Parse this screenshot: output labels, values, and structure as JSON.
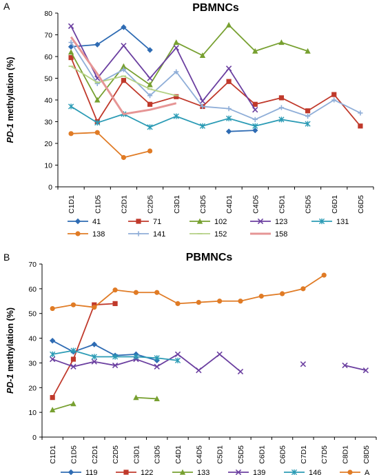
{
  "chart_data": [
    {
      "type": "line",
      "panel_label": "A",
      "title": "PBMNCs",
      "ylabel_prefix": "PD-1",
      "ylabel_suffix": " methylation (%)",
      "ylim": [
        0,
        80
      ],
      "yticks": [
        0,
        10,
        20,
        30,
        40,
        50,
        60,
        70,
        80
      ],
      "grid": false,
      "legend_position": "bottom",
      "categories": [
        "C1D1",
        "C1D5",
        "C2D1",
        "C2D5",
        "C3D1",
        "C3D5",
        "C4D1",
        "C4D5",
        "C5D1",
        "C5D5",
        "C6D1",
        "C6D5"
      ],
      "series": [
        {
          "name": "41",
          "color": "#2e6bb3",
          "marker": "diamond",
          "values": [
            64.5,
            65.5,
            73.5,
            63,
            null,
            null,
            25.5,
            26,
            null,
            null,
            null,
            null
          ]
        },
        {
          "name": "71",
          "color": "#c0392b",
          "marker": "square",
          "values": [
            59.5,
            30,
            49,
            38,
            41.5,
            37,
            48.5,
            38,
            41,
            35,
            42.5,
            28
          ]
        },
        {
          "name": "102",
          "color": "#77a030",
          "marker": "triangle",
          "values": [
            62,
            40,
            55.5,
            47,
            66.5,
            60.5,
            74.5,
            62.5,
            66.5,
            62.5,
            null,
            null
          ]
        },
        {
          "name": "123",
          "color": "#6b3fa0",
          "marker": "x",
          "values": [
            74,
            50,
            65,
            50,
            64,
            39.5,
            54.5,
            35.5,
            null,
            null,
            null,
            null
          ]
        },
        {
          "name": "131",
          "color": "#2b9bb5",
          "marker": "star",
          "values": [
            37,
            29.5,
            33.5,
            27.5,
            32.5,
            28,
            31.5,
            28,
            31,
            29,
            null,
            null
          ]
        },
        {
          "name": "138",
          "color": "#e07b25",
          "marker": "circle",
          "values": [
            24.5,
            25,
            13.5,
            16.5,
            null,
            null,
            null,
            null,
            null,
            null,
            null,
            null
          ]
        },
        {
          "name": "141",
          "color": "#8faed8",
          "marker": "plus",
          "values": [
            66.5,
            47.5,
            54,
            42,
            53,
            37,
            36,
            31,
            36.5,
            32.5,
            40,
            34
          ]
        },
        {
          "name": "152",
          "color": "#b4d184",
          "marker": "dash",
          "values": [
            55.5,
            48,
            51,
            45,
            42,
            null,
            null,
            null,
            null,
            null,
            null,
            null
          ]
        },
        {
          "name": "158",
          "color": "#e69595",
          "marker": "none",
          "values": [
            69,
            52,
            33.5,
            35.5,
            38.5,
            null,
            null,
            null,
            null,
            null,
            null,
            null
          ]
        }
      ]
    },
    {
      "type": "line",
      "panel_label": "B",
      "title": "PBMNCs",
      "ylabel_prefix": "PD-1",
      "ylabel_suffix": " methylation (%)",
      "ylim": [
        0,
        70
      ],
      "yticks": [
        0,
        10,
        20,
        30,
        40,
        50,
        60,
        70
      ],
      "grid": false,
      "legend_position": "bottom",
      "categories": [
        "C1D1",
        "C1D5",
        "C2D1",
        "C2D5",
        "C3D1",
        "C3D5",
        "C4D1",
        "C4D5",
        "C5D1",
        "C5D5",
        "C6D1",
        "C6D5",
        "C7D1",
        "C7D5",
        "C8D1",
        "C8D5"
      ],
      "series": [
        {
          "name": "119",
          "color": "#2e6bb3",
          "marker": "diamond",
          "values": [
            39,
            34.5,
            37.5,
            33,
            33.5,
            31,
            null,
            null,
            null,
            null,
            null,
            null,
            null,
            null,
            null,
            null
          ]
        },
        {
          "name": "122",
          "color": "#c0392b",
          "marker": "square",
          "values": [
            16,
            31.5,
            53.5,
            54,
            null,
            null,
            null,
            null,
            null,
            null,
            null,
            null,
            null,
            null,
            null,
            null
          ]
        },
        {
          "name": "133",
          "color": "#77a030",
          "marker": "triangle",
          "values": [
            11,
            13.5,
            null,
            null,
            16,
            15.5,
            null,
            null,
            null,
            null,
            null,
            null,
            null,
            null,
            null,
            null
          ]
        },
        {
          "name": "139",
          "color": "#6b3fa0",
          "marker": "x",
          "values": [
            31.5,
            28.5,
            30.5,
            29,
            31.5,
            28.5,
            33.5,
            27,
            33.5,
            26.5,
            null,
            null,
            29.5,
            null,
            29,
            27
          ]
        },
        {
          "name": "146",
          "color": "#2b9bb5",
          "marker": "star",
          "values": [
            33.5,
            35,
            32.5,
            32.5,
            32.5,
            32,
            31,
            null,
            null,
            null,
            null,
            null,
            null,
            null,
            null,
            null
          ]
        },
        {
          "name": "A",
          "color": "#e07b25",
          "marker": "circle",
          "values": [
            52,
            53.5,
            52.5,
            59.5,
            58.5,
            58.5,
            54,
            54.5,
            55,
            55,
            57,
            58,
            60,
            65.5,
            null,
            null
          ]
        }
      ]
    }
  ]
}
